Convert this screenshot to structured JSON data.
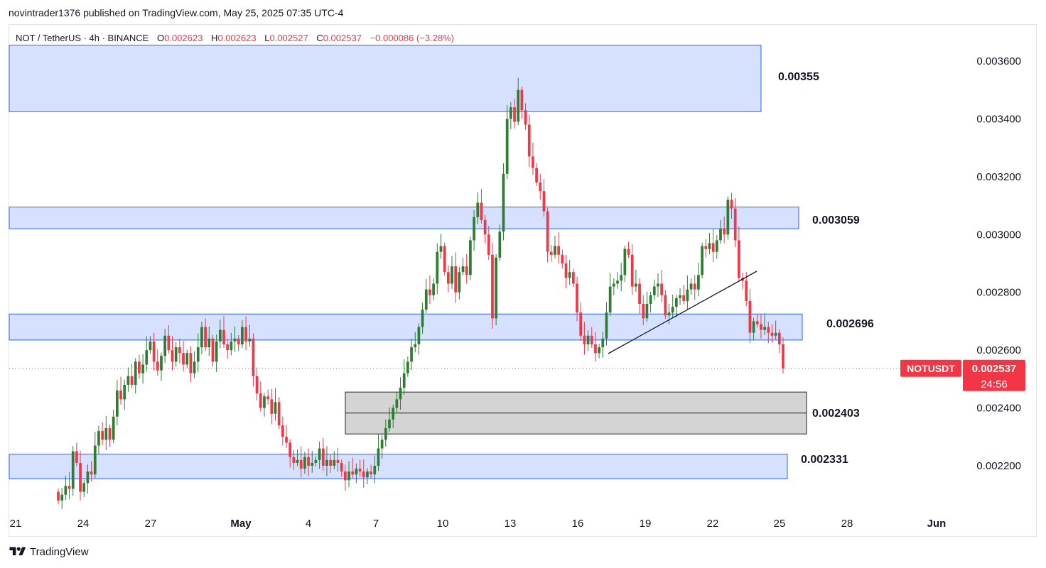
{
  "header": {
    "published_line": "novintrader1376 published on TradingView.com, May 25, 2025 07:35 UTC-4"
  },
  "legend": {
    "symbol": "NOT / TetherUS · 4h · BINANCE",
    "o_label": "O",
    "o": "0.002623",
    "h_label": "H",
    "h": "0.002623",
    "l_label": "L",
    "l": "0.002527",
    "c_label": "C",
    "c": "0.002537",
    "change": "−0.000086 (−3.28%)"
  },
  "footer": {
    "brand": "TradingView"
  },
  "colors": {
    "up": "#2e7d32",
    "down": "#f23645",
    "zone_fill": "#d6e0ff",
    "zone_border": "#2962ff",
    "gray_fill": "#d4d4d4"
  },
  "chart_data": {
    "type": "candlestick",
    "symbol": "NOTUSDT",
    "ylim": [
      0.00207,
      0.00374
    ],
    "y_ticks": [
      "0.003600",
      "0.003400",
      "0.003200",
      "0.003000",
      "0.002800",
      "0.002600",
      "0.002400",
      "0.002200"
    ],
    "x_ticks": [
      "21",
      "24",
      "27",
      "May",
      "4",
      "7",
      "10",
      "13",
      "16",
      "19",
      "22",
      "25",
      "28",
      "Jun"
    ],
    "last_price": {
      "label": "NOTUSDT",
      "value": "0.002537",
      "countdown": "24:56"
    },
    "zones": [
      {
        "kind": "resistance",
        "label": "0.00355",
        "top": 0.003655,
        "bottom": 0.003425
      },
      {
        "kind": "resistance",
        "label": "0.003059",
        "top": 0.003095,
        "bottom": 0.00302
      },
      {
        "kind": "support",
        "label": "0.002696",
        "top": 0.002725,
        "bottom": 0.002635
      },
      {
        "kind": "gap",
        "label": "0.002403",
        "top": 0.002455,
        "bottom": 0.00231
      },
      {
        "kind": "support",
        "label": "0.002331",
        "top": 0.00224,
        "bottom": 0.002155
      }
    ],
    "trendline": {
      "from": [
        "May 17",
        0.00259
      ],
      "to": [
        "May 23",
        0.002875
      ]
    },
    "candles_close": [
      0.00208,
      0.0021,
      0.00213,
      0.00212,
      0.00225,
      0.00221,
      0.00211,
      0.00214,
      0.00218,
      0.00217,
      0.00227,
      0.00232,
      0.00229,
      0.00233,
      0.00229,
      0.00237,
      0.00246,
      0.00243,
      0.00248,
      0.00251,
      0.00248,
      0.00256,
      0.00252,
      0.00255,
      0.0026,
      0.00263,
      0.00256,
      0.00253,
      0.00258,
      0.00265,
      0.0026,
      0.00256,
      0.00261,
      0.00259,
      0.00255,
      0.00259,
      0.00252,
      0.00256,
      0.00261,
      0.00268,
      0.00261,
      0.00264,
      0.00256,
      0.00263,
      0.00267,
      0.00262,
      0.0026,
      0.00263,
      0.00264,
      0.00262,
      0.00268,
      0.00263,
      0.00264,
      0.00251,
      0.00245,
      0.0024,
      0.00244,
      0.00243,
      0.00238,
      0.00242,
      0.00234,
      0.0023,
      0.00228,
      0.00223,
      0.00221,
      0.00222,
      0.00219,
      0.00223,
      0.0022,
      0.00221,
      0.00222,
      0.00226,
      0.0022,
      0.00222,
      0.0022,
      0.00222,
      0.00221,
      0.00218,
      0.00215,
      0.00218,
      0.00217,
      0.00219,
      0.00218,
      0.00216,
      0.00218,
      0.00217,
      0.0022,
      0.00226,
      0.00229,
      0.00233,
      0.00236,
      0.0024,
      0.00243,
      0.00247,
      0.00252,
      0.00256,
      0.00261,
      0.00262,
      0.00268,
      0.00274,
      0.00281,
      0.00279,
      0.00283,
      0.00294,
      0.00296,
      0.00287,
      0.00283,
      0.00289,
      0.0028,
      0.00287,
      0.00289,
      0.00286,
      0.00298,
      0.00306,
      0.00311,
      0.00305,
      0.003,
      0.00293,
      0.00271,
      0.00292,
      0.00301,
      0.00321,
      0.0034,
      0.00344,
      0.00339,
      0.0035,
      0.00343,
      0.00338,
      0.00327,
      0.00323,
      0.00318,
      0.00315,
      0.00308,
      0.00294,
      0.00293,
      0.00296,
      0.00293,
      0.0029,
      0.00285,
      0.00287,
      0.00283,
      0.00273,
      0.00265,
      0.00262,
      0.00265,
      0.00262,
      0.00259,
      0.00261,
      0.00264,
      0.00273,
      0.00282,
      0.00283,
      0.00284,
      0.00286,
      0.00295,
      0.00293,
      0.00282,
      0.00283,
      0.00276,
      0.00271,
      0.00276,
      0.00279,
      0.00282,
      0.00283,
      0.00279,
      0.00272,
      0.00273,
      0.00275,
      0.00278,
      0.00279,
      0.00277,
      0.00281,
      0.00283,
      0.00281,
      0.00286,
      0.00296,
      0.00295,
      0.00297,
      0.00294,
      0.00298,
      0.00302,
      0.003,
      0.00312,
      0.00309,
      0.00298,
      0.00285,
      0.00284,
      0.00277,
      0.00266,
      0.0027,
      0.00269,
      0.00267,
      0.00268,
      0.00266,
      0.00265,
      0.00266,
      0.00262,
      0.002537
    ]
  }
}
